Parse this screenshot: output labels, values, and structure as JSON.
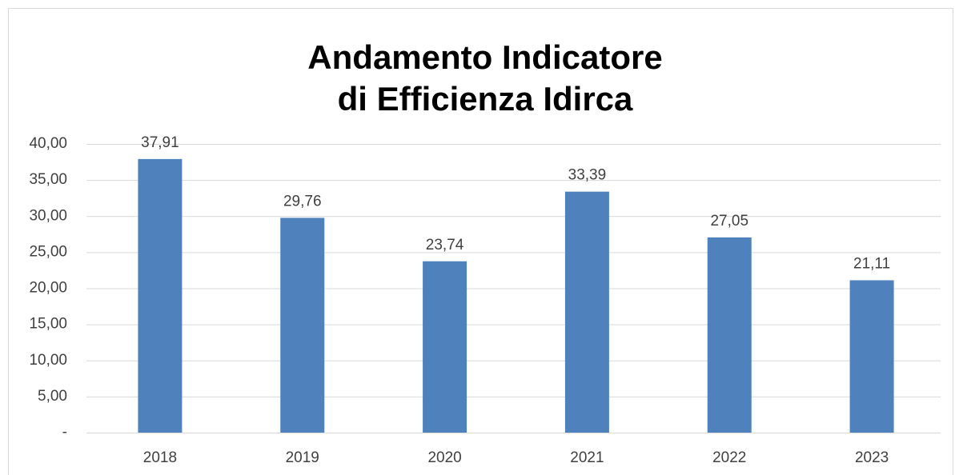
{
  "chart_data": {
    "type": "bar",
    "title": [
      "Andamento Indicatore",
      "di Efficienza Idirca"
    ],
    "categories": [
      "2018",
      "2019",
      "2020",
      "2021",
      "2022",
      "2023"
    ],
    "values": [
      37.91,
      29.76,
      23.74,
      33.39,
      27.05,
      21.11
    ],
    "value_labels": [
      "37,91",
      "29,76",
      "23,74",
      "33,39",
      "27,05",
      "21,11"
    ],
    "color": "#4f81bd",
    "ylim": [
      0,
      40
    ],
    "yticks": [
      {
        "value": 0,
        "label": "-"
      },
      {
        "value": 5,
        "label": "5,00"
      },
      {
        "value": 10,
        "label": "10,00"
      },
      {
        "value": 15,
        "label": "15,00"
      },
      {
        "value": 20,
        "label": "20,00"
      },
      {
        "value": 25,
        "label": "25,00"
      },
      {
        "value": 30,
        "label": "30,00"
      },
      {
        "value": 35,
        "label": "35,00"
      },
      {
        "value": 40,
        "label": "40,00"
      }
    ],
    "grid": true
  }
}
